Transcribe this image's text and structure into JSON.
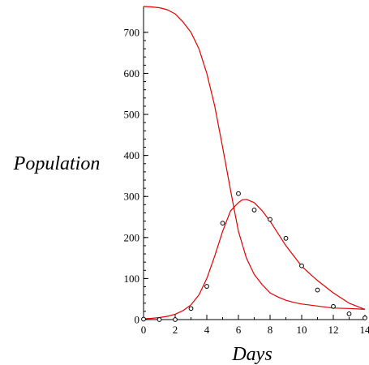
{
  "chart_data": {
    "type": "line",
    "title": "",
    "xlabel": "Days",
    "ylabel": "Population",
    "xlim": [
      0,
      14
    ],
    "ylim": [
      0,
      763
    ],
    "xticks": [
      0,
      2,
      4,
      6,
      8,
      10,
      12,
      14
    ],
    "yticks": [
      0,
      100,
      200,
      300,
      400,
      500,
      600,
      700
    ],
    "x_minor_step": 1,
    "y_minor_step": 20,
    "grid": false,
    "legend": "none",
    "series": [
      {
        "kind": "line",
        "color": "#e00000",
        "x": [
          0,
          0.5,
          1,
          1.5,
          2,
          2.5,
          3,
          3.5,
          4,
          4.5,
          5,
          5.5,
          6,
          6.5,
          7,
          7.5,
          8,
          8.5,
          9,
          9.5,
          10,
          11,
          12,
          13,
          14
        ],
        "y": [
          763,
          762,
          760,
          755,
          745,
          725,
          700,
          660,
          600,
          520,
          420,
          315,
          215,
          150,
          110,
          85,
          65,
          55,
          47,
          42,
          38,
          33,
          28,
          27,
          25
        ]
      },
      {
        "kind": "line",
        "color": "#e00000",
        "x": [
          0,
          0.5,
          1,
          1.5,
          2,
          2.5,
          3,
          3.5,
          4,
          4.5,
          5,
          5.5,
          6,
          6.25,
          6.5,
          7,
          7.5,
          8,
          8.5,
          9,
          9.5,
          10,
          10.5,
          11,
          12,
          13,
          14
        ],
        "y": [
          2,
          3,
          5,
          8,
          13,
          22,
          36,
          60,
          100,
          155,
          215,
          265,
          285,
          292,
          293,
          285,
          265,
          240,
          210,
          180,
          155,
          130,
          112,
          95,
          65,
          40,
          25
        ]
      },
      {
        "kind": "scatter",
        "color": "#000000",
        "x": [
          0,
          1,
          2,
          3,
          4,
          5,
          6,
          7,
          8,
          9,
          10,
          11,
          12,
          13,
          14
        ],
        "y": [
          1,
          0,
          0,
          27,
          81,
          235,
          307,
          267,
          244,
          198,
          131,
          72,
          32,
          14,
          4
        ]
      }
    ]
  }
}
